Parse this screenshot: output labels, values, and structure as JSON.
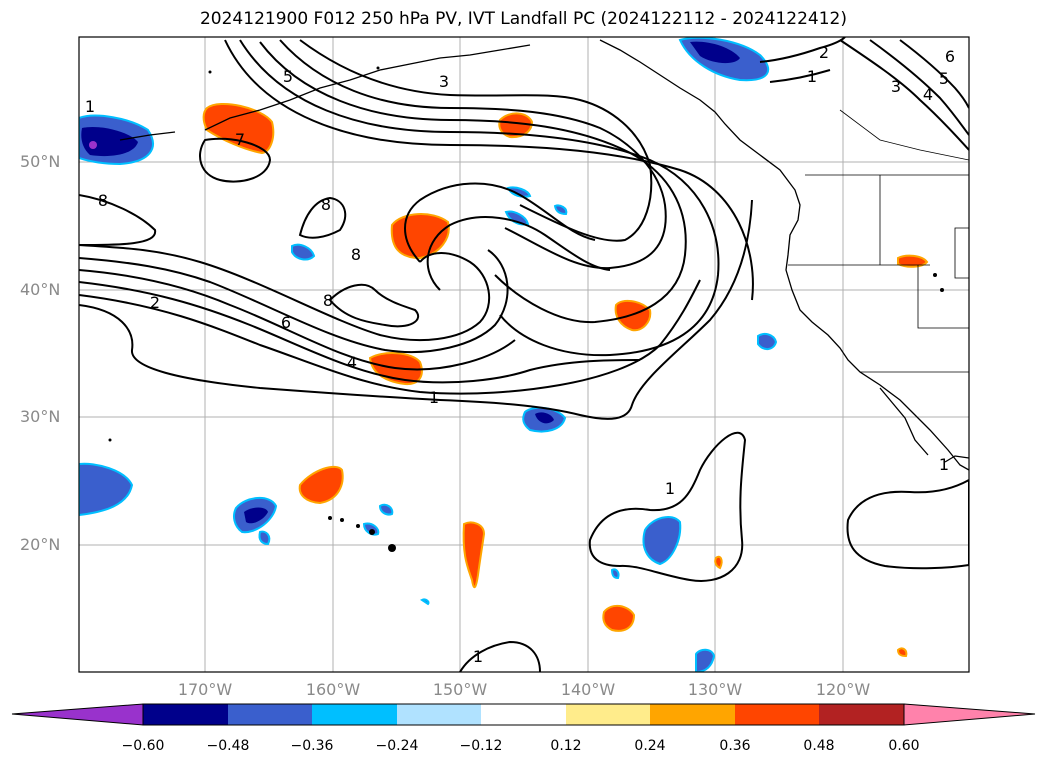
{
  "title": "2024121900 F012 250 hPa PV, IVT Landfall PC (2024122112 - 2024122412)",
  "map": {
    "lat_labels": [
      "50°N",
      "40°N",
      "30°N",
      "20°N"
    ],
    "lon_labels": [
      "170°W",
      "160°W",
      "150°W",
      "140°W",
      "130°W",
      "120°W"
    ],
    "contour_labels": [
      "5",
      "3",
      "2",
      "1",
      "6",
      "5",
      "3",
      "4",
      "1",
      "7",
      "8",
      "8",
      "8",
      "8",
      "2",
      "6",
      "4",
      "1",
      "1",
      "1",
      "1"
    ],
    "colors": {
      "contour": "#000000",
      "coastline": "#000000",
      "grid": "#b0b0b0",
      "fill_pos": "#ff4500",
      "fill_pos_edge": "#ffa500",
      "fill_neg": "#3a5fcd",
      "fill_neg_dark": "#00008b",
      "fill_neg_edge": "#00bfff"
    }
  },
  "colorbar": {
    "levels": [
      "−0.60",
      "−0.48",
      "−0.36",
      "−0.24",
      "−0.12",
      "0.12",
      "0.24",
      "0.36",
      "0.48",
      "0.60"
    ],
    "colors": [
      "#9932cc",
      "#00008b",
      "#3a5fcd",
      "#00bfff",
      "#b0e2ff",
      "#ffffff",
      "#ffec8b",
      "#ffa500",
      "#ff4500",
      "#b22222",
      "#ff82ab"
    ]
  }
}
